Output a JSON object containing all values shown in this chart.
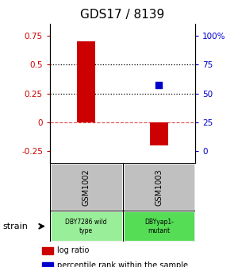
{
  "title": "GDS17 / 8139",
  "samples": [
    "GSM1002",
    "GSM1003"
  ],
  "log_ratios": [
    0.7,
    -0.2
  ],
  "ylim": [
    -0.35,
    0.85
  ],
  "yticks_left": [
    -0.25,
    0,
    0.25,
    0.5,
    0.75
  ],
  "yticks_right_pct": [
    0,
    25,
    50,
    75,
    100
  ],
  "hlines_dotted": [
    0.5,
    0.25
  ],
  "zero_line_y": 0,
  "bar_color": "#cc0000",
  "dot_color": "#0000cc",
  "dot_pct": 57.5,
  "dot_sample_idx": 1,
  "sample_bg": "#c0c0c0",
  "strain_bg": [
    "#99ee99",
    "#55dd55"
  ],
  "strain_labels": [
    "DBY7286 wild\ntype",
    "DBYyap1-\nmutant"
  ],
  "strain_label": "strain",
  "legend_log": "log ratio",
  "legend_pct": "percentile rank within the sample",
  "bar_width": 0.25,
  "dot_size": 40,
  "left_color": "#cc0000",
  "right_color": "#0000cc",
  "title_fontsize": 11,
  "tick_fontsize": 7.5,
  "legend_fontsize": 7
}
